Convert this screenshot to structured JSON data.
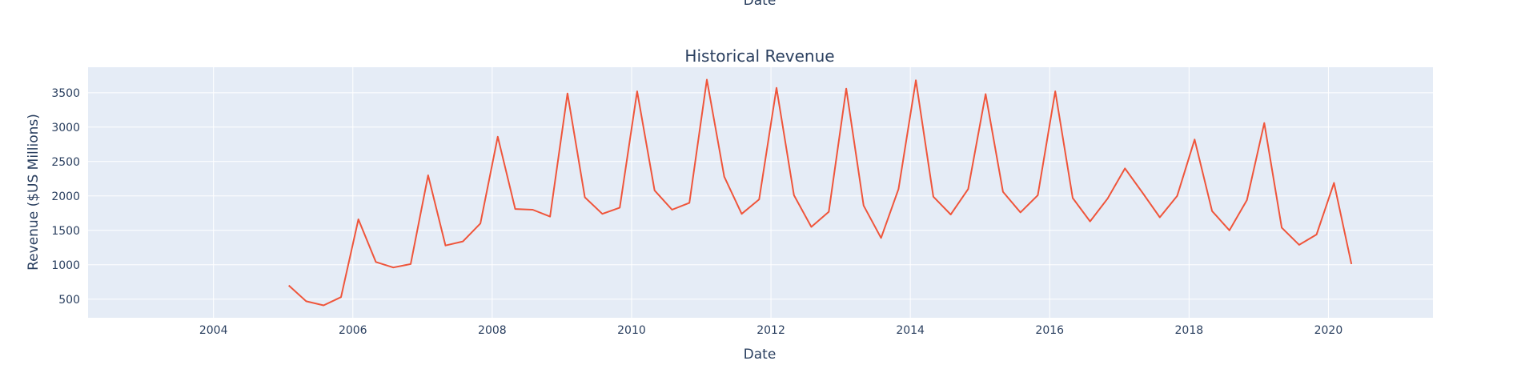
{
  "chart_data": {
    "type": "line",
    "title": "Historical Revenue",
    "top_label": "Date",
    "xlabel": "Date",
    "ylabel": "Revenue ($US Millions)",
    "xlim": [
      2002.2,
      2021.5
    ],
    "ylim": [
      230,
      3870
    ],
    "x_ticks": [
      2004,
      2006,
      2008,
      2010,
      2012,
      2014,
      2016,
      2018,
      2020
    ],
    "y_ticks": [
      500,
      1000,
      1500,
      2000,
      2500,
      3000,
      3500
    ],
    "grid": true,
    "legend": "none",
    "colors": {
      "plot_bg": "#e5ecf6",
      "grid": "#ffffff",
      "line": "#ef553b",
      "text": "#2a3f5f"
    },
    "series": [
      {
        "x": [
          2005.08,
          2005.33,
          2005.58,
          2005.83,
          2006.08,
          2006.33,
          2006.58,
          2006.83,
          2007.08,
          2007.33,
          2007.58,
          2007.83,
          2008.08,
          2008.33,
          2008.58,
          2008.83,
          2009.08,
          2009.33,
          2009.58,
          2009.83,
          2010.08,
          2010.33,
          2010.58,
          2010.83,
          2011.08,
          2011.33,
          2011.58,
          2011.83,
          2012.08,
          2012.33,
          2012.58,
          2012.83,
          2013.08,
          2013.33,
          2013.58,
          2013.83,
          2014.08,
          2014.33,
          2014.58,
          2014.83,
          2015.08,
          2015.33,
          2015.58,
          2015.83,
          2016.08,
          2016.33,
          2016.58,
          2016.83,
          2017.08,
          2017.33,
          2017.58,
          2017.83,
          2018.08,
          2018.33,
          2018.58,
          2018.83,
          2019.08,
          2019.33,
          2019.58,
          2019.83,
          2020.08,
          2020.33
        ],
        "values": [
          700,
          470,
          410,
          530,
          1660,
          1040,
          960,
          1010,
          2300,
          1280,
          1340,
          1600,
          2860,
          1810,
          1800,
          1700,
          3490,
          1980,
          1740,
          1830,
          3520,
          2080,
          1800,
          1900,
          3690,
          2280,
          1740,
          1950,
          3570,
          2010,
          1550,
          1770,
          3560,
          1860,
          1390,
          2100,
          3680,
          1990,
          1730,
          2100,
          3480,
          2060,
          1760,
          2010,
          3520,
          1970,
          1630,
          1960,
          2400,
          2050,
          1690,
          2000,
          2820,
          1780,
          1500,
          1940,
          3060,
          1540,
          1290,
          1440,
          2190,
          1010
        ]
      }
    ]
  }
}
